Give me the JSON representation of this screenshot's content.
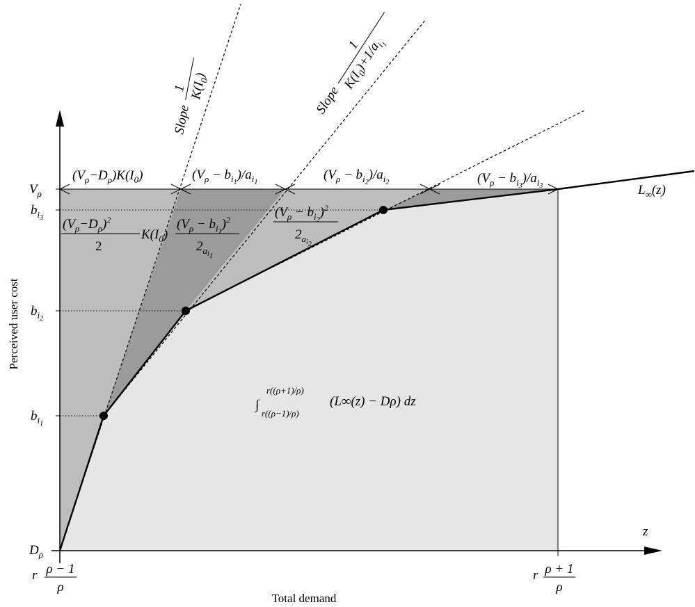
{
  "axes": {
    "x_title": "Total demand",
    "y_title": "Perceived user cost",
    "x_symbol": "z"
  },
  "y_ticks": {
    "v_rho": "V",
    "b_i3": "b",
    "b_i2": "b",
    "b_i1": "b",
    "d_rho": "D",
    "sub_rho": "ρ",
    "sub_i": "i",
    "sub_1": "1",
    "sub_2": "2",
    "sub_3": "3"
  },
  "x_ticks": {
    "left": {
      "prefix": "r",
      "numerator": "ρ − 1",
      "denominator": "ρ"
    },
    "right": {
      "prefix": "r",
      "numerator": "ρ + 1",
      "denominator": "ρ"
    }
  },
  "curve_label": {
    "text": "L",
    "sub": "∞",
    "arg": "(z)"
  },
  "slopes": {
    "first": {
      "word": "Slope",
      "num": "1",
      "den": "K(I",
      "den_sub": "0",
      "den_end": ")"
    },
    "second": {
      "word": "Slope",
      "num": "1",
      "den": "K(I",
      "den_sub": "0",
      "den_mid": ")+1/a",
      "den_sub2": "i",
      "den_sub3": "1"
    }
  },
  "intervals": {
    "first": "(V",
    "second": "(V",
    "third": "(V",
    "fourth": "(V"
  },
  "areas": {
    "integral": "(L∞(z) − Dρ) dz",
    "integral_upper": "r((ρ+1)/ρ)",
    "integral_lower": "r((ρ−1)/ρ)"
  },
  "colors": {
    "light": "#e6e6e6",
    "medium": "#bdbdbd",
    "dark": "#9b9b9b"
  }
}
